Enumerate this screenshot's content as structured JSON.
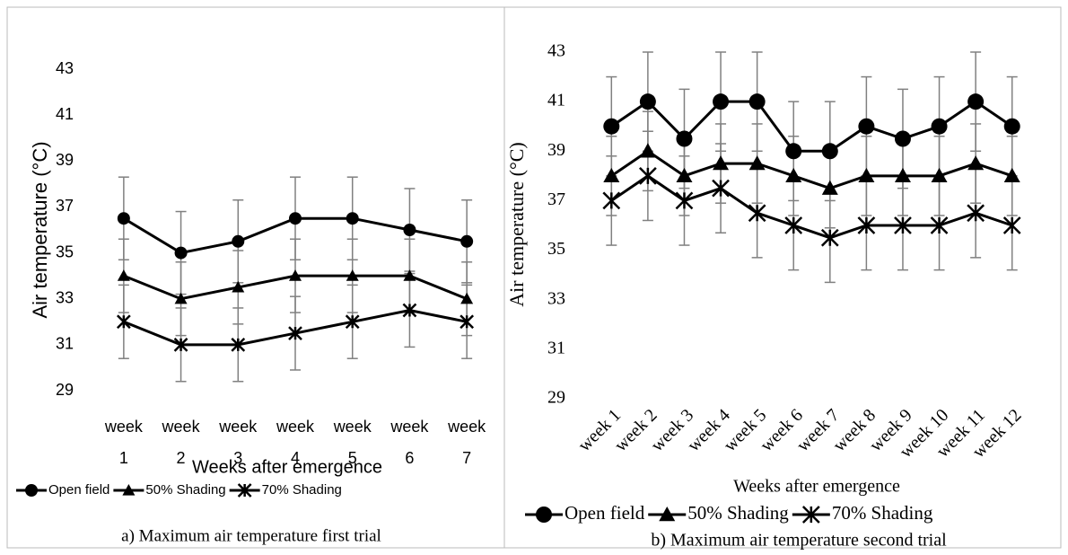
{
  "chart_data": [
    {
      "type": "line",
      "ylabel": "Air temperature (°C)",
      "xlabel": "Weeks after emergence",
      "caption": "a) Maximum air temperature first trial",
      "categories": [
        "week 1",
        "week 2",
        "week 3",
        "week 4",
        "week 5",
        "week 6",
        "week 7"
      ],
      "ylim": [
        29,
        43
      ],
      "yticks": [
        29,
        31,
        33,
        35,
        37,
        39,
        41,
        43
      ],
      "grid": false,
      "error_color": "#808080",
      "series": [
        {
          "name": "Open field",
          "color": "#000000",
          "marker": "circle",
          "values": [
            36.5,
            35,
            35.5,
            36.5,
            36.5,
            36,
            35.5
          ],
          "errors": [
            1.8,
            1.8,
            1.8,
            1.8,
            1.8,
            1.8,
            1.8
          ]
        },
        {
          "name": "50% Shading",
          "color": "#000000",
          "marker": "triangle",
          "values": [
            34,
            33,
            33.5,
            34,
            34,
            34,
            33
          ],
          "errors": [
            1.6,
            1.6,
            1.6,
            1.6,
            1.6,
            1.6,
            1.6
          ]
        },
        {
          "name": "70% Shading",
          "color": "#000000",
          "marker": "star",
          "values": [
            32,
            31,
            31,
            31.5,
            32,
            32.5,
            32
          ],
          "errors": [
            1.6,
            1.6,
            1.6,
            1.6,
            1.6,
            1.6,
            1.6
          ]
        }
      ]
    },
    {
      "type": "line",
      "ylabel": "Air temperature (°C)",
      "xlabel": "Weeks after emergence",
      "caption": "b) Maximum air temperature second trial",
      "categories": [
        "week 1",
        "week 2",
        "week 3",
        "week 4",
        "week 5",
        "week 6",
        "week 7",
        "week 8",
        "week 9",
        "week 10",
        "week 11",
        "week 12"
      ],
      "ylim": [
        29,
        43
      ],
      "yticks": [
        29,
        31,
        33,
        35,
        37,
        39,
        41,
        43
      ],
      "grid": false,
      "error_color": "#808080",
      "series": [
        {
          "name": "Open field",
          "color": "#000000",
          "marker": "circle",
          "values": [
            40,
            41,
            39.5,
            41,
            41,
            39,
            39,
            40,
            39.5,
            40,
            41,
            40
          ],
          "errors": [
            2,
            2,
            2,
            2,
            2,
            2,
            2,
            2,
            2,
            2,
            2,
            2
          ]
        },
        {
          "name": "50% Shading",
          "color": "#000000",
          "marker": "triangle",
          "values": [
            38,
            39,
            38,
            38.5,
            38.5,
            38,
            37.5,
            38,
            38,
            38,
            38.5,
            38
          ],
          "errors": [
            1.6,
            1.6,
            1.6,
            1.6,
            1.6,
            1.6,
            1.6,
            1.6,
            1.6,
            1.6,
            1.6,
            1.6
          ]
        },
        {
          "name": "70% Shading",
          "color": "#000000",
          "marker": "star",
          "values": [
            37,
            38,
            37,
            37.5,
            36.5,
            36,
            35.5,
            36,
            36,
            36,
            36.5,
            36
          ],
          "errors": [
            1.8,
            1.8,
            1.8,
            1.8,
            1.8,
            1.8,
            1.8,
            1.8,
            1.8,
            1.8,
            1.8,
            1.8
          ]
        }
      ]
    }
  ]
}
